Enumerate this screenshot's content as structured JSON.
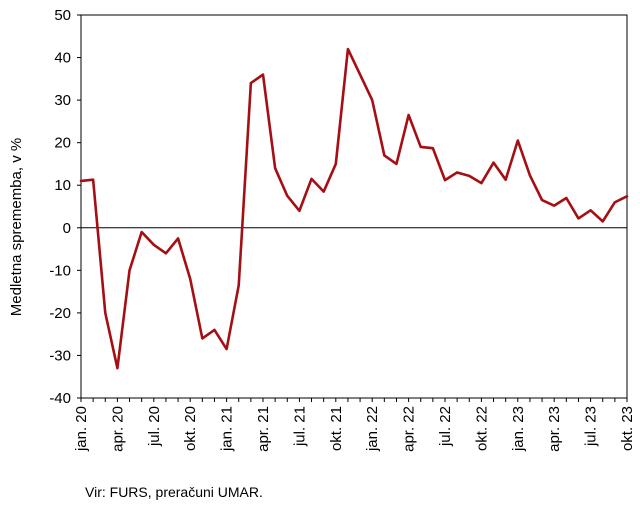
{
  "chart_data": {
    "type": "line",
    "ylabel": "Medletna sprememba, v %",
    "ylim": [
      -40,
      50
    ],
    "yticks": [
      -40,
      -30,
      -20,
      -10,
      0,
      10,
      20,
      30,
      40,
      50
    ],
    "xtick_labels": [
      "jan. 20",
      "apr. 20",
      "jul. 20",
      "okt. 20",
      "jan. 21",
      "apr. 21",
      "jul. 21",
      "okt. 21",
      "jan. 22",
      "apr. 22",
      "jul. 22",
      "okt. 22",
      "jan. 23",
      "apr. 23",
      "jul. 23",
      "okt. 23"
    ],
    "x": [
      "jan. 20",
      "feb. 20",
      "mar. 20",
      "apr. 20",
      "maj 20",
      "jun. 20",
      "jul. 20",
      "avg. 20",
      "sep. 20",
      "okt. 20",
      "nov. 20",
      "dec. 20",
      "jan. 21",
      "feb. 21",
      "mar. 21",
      "apr. 21",
      "maj 21",
      "jun. 21",
      "jul. 21",
      "avg. 21",
      "sep. 21",
      "okt. 21",
      "nov. 21",
      "dec. 21",
      "jan. 22",
      "feb. 22",
      "mar. 22",
      "apr. 22",
      "maj 22",
      "jun. 22",
      "jul. 22",
      "avg. 22",
      "sep. 22",
      "okt. 22",
      "nov. 22",
      "dec. 22",
      "jan. 23",
      "feb. 23",
      "mar. 23",
      "apr. 23",
      "maj 23",
      "jun. 23",
      "jul. 23",
      "avg. 23",
      "sep. 23",
      "okt. 23"
    ],
    "series": [
      {
        "color": "#A50F14",
        "values": [
          11,
          11.3,
          -20,
          -33,
          -10,
          -1,
          -4,
          -6,
          -2.5,
          -12,
          -26,
          -24,
          -28.5,
          -13.5,
          34,
          36,
          14,
          7.5,
          4,
          11.5,
          8.5,
          15,
          42,
          36,
          30,
          17,
          15,
          26.5,
          19,
          18.7,
          11.2,
          13,
          12.2,
          10.5,
          15.3,
          11.3,
          20.5,
          12.3,
          6.5,
          5.2,
          7,
          2.2,
          4.1,
          1.5,
          6,
          7.4
        ]
      }
    ],
    "zero_line": true,
    "grid": false
  },
  "source_text": "Vir: FURS, preračuni UMAR."
}
